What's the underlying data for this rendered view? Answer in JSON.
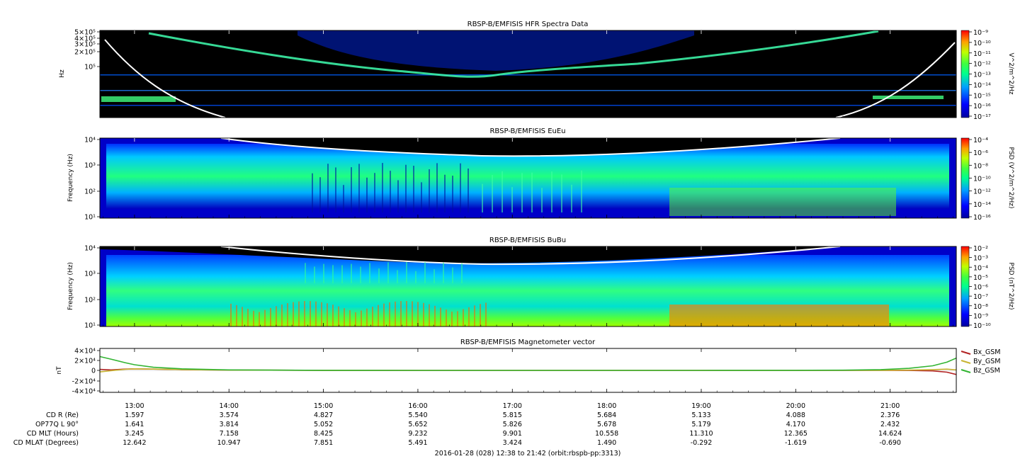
{
  "colors": {
    "background": "#000000",
    "spectro_low": "#0000ff",
    "spectro_mid": "#00ff80",
    "spectro_high": "#ff0000",
    "curve": "#ffffff",
    "bx": "#b22222",
    "by": "#c8b432",
    "bz": "#32b432"
  },
  "chart_data": [
    {
      "type": "heatmap",
      "title": "RBSP-B/EMFISIS  HFR Spectra Data",
      "ylabel": "Hz",
      "y_scale": "log",
      "yticks": [
        "5×10⁵",
        "4×10⁵",
        "3×10⁵",
        "2×10⁵",
        "10⁵"
      ],
      "colorbar_label": "V^2/m^2/Hz",
      "colorbar_scale": "log",
      "colorbar_ticks": [
        "10⁻⁹",
        "10⁻¹⁰",
        "10⁻¹¹",
        "10⁻¹²",
        "10⁻¹³",
        "10⁻¹⁴",
        "10⁻¹⁵",
        "10⁻¹⁶",
        "10⁻¹⁷"
      ]
    },
    {
      "type": "heatmap",
      "title": "RBSP-B/EMFISIS  EuEu",
      "ylabel": "Frequency (Hz)",
      "y_scale": "log",
      "ylim": [
        10,
        10000
      ],
      "yticks": [
        "10⁴",
        "10³",
        "10²",
        "10¹"
      ],
      "colorbar_label": "PSD (V^2/m^2/Hz)",
      "colorbar_scale": "log",
      "colorbar_ticks": [
        "10⁻⁴",
        "10⁻⁶",
        "10⁻⁸",
        "10⁻¹⁰",
        "10⁻¹²",
        "10⁻¹⁴",
        "10⁻¹⁶"
      ]
    },
    {
      "type": "heatmap",
      "title": "RBSP-B/EMFISIS  BuBu",
      "ylabel": "Frequency (Hz)",
      "y_scale": "log",
      "ylim": [
        10,
        10000
      ],
      "yticks": [
        "10⁴",
        "10³",
        "10²",
        "10¹"
      ],
      "colorbar_label": "PSD (nT^2/Hz)",
      "colorbar_scale": "log",
      "colorbar_ticks": [
        "10⁻²",
        "10⁻³",
        "10⁻⁴",
        "10⁻⁵",
        "10⁻⁶",
        "10⁻⁷",
        "10⁻⁸",
        "10⁻⁹",
        "10⁻¹⁰"
      ]
    },
    {
      "type": "line",
      "title": "RBSP-B/EMFISIS  Magnetometer vector",
      "ylabel": "nT",
      "ylim": [
        -40000,
        40000
      ],
      "yticks": [
        "4×10⁴",
        "2×10⁴",
        "0",
        "-2×10⁴",
        "-4×10⁴"
      ],
      "legend": "right",
      "x_hours": [
        12.63,
        12.75,
        12.9,
        13.0,
        13.2,
        13.5,
        14.0,
        15.0,
        16.0,
        17.0,
        18.0,
        19.0,
        20.0,
        20.5,
        20.9,
        21.2,
        21.45,
        21.6,
        21.7
      ],
      "series": [
        {
          "name": "Bx_GSM",
          "values": [
            2000,
            1000,
            2500,
            3000,
            2500,
            1500,
            500,
            100,
            0,
            0,
            0,
            0,
            0,
            0,
            0,
            -200,
            -1000,
            -3500,
            -8000
          ]
        },
        {
          "name": "By_GSM",
          "values": [
            -3000,
            -500,
            2000,
            3000,
            2500,
            1500,
            500,
            100,
            0,
            0,
            0,
            0,
            0,
            0,
            100,
            500,
            1500,
            2500,
            1000
          ]
        },
        {
          "name": "Bz_GSM",
          "values": [
            27000,
            22000,
            15000,
            11000,
            6000,
            3000,
            1000,
            200,
            0,
            0,
            0,
            0,
            100,
            400,
            1500,
            4000,
            9000,
            16000,
            24000
          ]
        }
      ]
    }
  ],
  "x_axis": {
    "ticks": [
      "13:00",
      "14:00",
      "15:00",
      "16:00",
      "17:00",
      "18:00",
      "19:00",
      "20:00",
      "21:00"
    ],
    "range_label": "2016-01-28 (028) 12:38 to 21:42 (orbit:rbspb-pp:3313)"
  },
  "ephemeris": {
    "labels": [
      "CD R (Re)",
      "OP77Q L 90°",
      "CD MLT (Hours)",
      "CD MLAT (Degrees)"
    ],
    "rows": [
      [
        "1.597",
        "3.574",
        "4.827",
        "5.540",
        "5.815",
        "5.684",
        "5.133",
        "4.088",
        "2.376"
      ],
      [
        "1.641",
        "3.814",
        "5.052",
        "5.652",
        "5.826",
        "5.678",
        "5.179",
        "4.170",
        "2.432"
      ],
      [
        "3.245",
        "7.158",
        "8.425",
        "9.232",
        "9.901",
        "10.558",
        "11.310",
        "12.365",
        "14.624"
      ],
      [
        "12.642",
        "10.947",
        "7.851",
        "5.491",
        "3.424",
        "1.490",
        "-0.292",
        "-1.619",
        "-0.690"
      ]
    ]
  }
}
